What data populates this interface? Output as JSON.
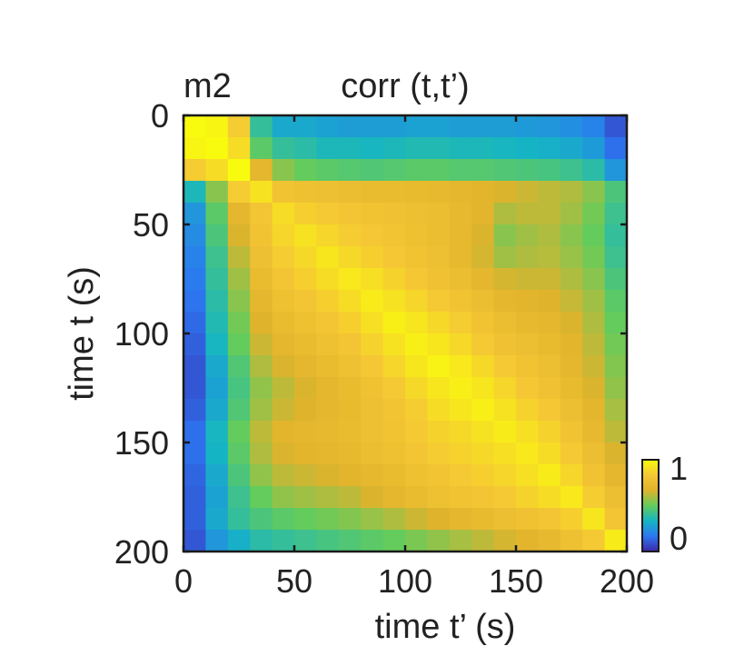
{
  "chart_data": {
    "type": "heatmap",
    "panel_label": "m2",
    "title": "corr (t,t’)",
    "xlabel": "time t’ (s)",
    "ylabel": "time t (s)",
    "xlim": [
      0,
      200
    ],
    "ylim": [
      0,
      200
    ],
    "y_inverted": true,
    "xticks": [
      {
        "value": 0,
        "label": "0"
      },
      {
        "value": 50,
        "label": "50"
      },
      {
        "value": 100,
        "label": "100"
      },
      {
        "value": 150,
        "label": "150"
      },
      {
        "value": 200,
        "label": "200"
      }
    ],
    "yticks": [
      {
        "value": 0,
        "label": "0"
      },
      {
        "value": 50,
        "label": "50"
      },
      {
        "value": 100,
        "label": "100"
      },
      {
        "value": 150,
        "label": "150"
      },
      {
        "value": 200,
        "label": "200"
      }
    ],
    "grid": false,
    "colormap": [
      "#3e26a8",
      "#2c77f2",
      "#15b5c4",
      "#64cc5c",
      "#e0b32c",
      "#f5c735",
      "#f9fb0e"
    ],
    "colorbar": {
      "position": "right",
      "range": [
        0,
        1
      ],
      "ticks": [
        {
          "value": 1,
          "label": "1"
        },
        {
          "value": 0,
          "label": "0"
        }
      ]
    },
    "bin_size_s": 10,
    "values": [
      [
        1.0,
        0.98,
        0.85,
        0.4,
        0.3,
        0.3,
        0.28,
        0.27,
        0.27,
        0.27,
        0.28,
        0.28,
        0.27,
        0.27,
        0.27,
        0.26,
        0.25,
        0.23,
        0.2,
        0.1
      ],
      [
        0.98,
        1.0,
        0.9,
        0.48,
        0.4,
        0.38,
        0.35,
        0.35,
        0.34,
        0.35,
        0.36,
        0.36,
        0.35,
        0.35,
        0.34,
        0.33,
        0.32,
        0.3,
        0.26,
        0.15
      ],
      [
        0.85,
        0.9,
        1.0,
        0.7,
        0.55,
        0.5,
        0.48,
        0.47,
        0.46,
        0.47,
        0.48,
        0.48,
        0.47,
        0.47,
        0.46,
        0.45,
        0.44,
        0.42,
        0.38,
        0.25
      ],
      [
        0.35,
        0.55,
        0.85,
        0.92,
        0.8,
        0.78,
        0.77,
        0.75,
        0.74,
        0.74,
        0.73,
        0.72,
        0.7,
        0.68,
        0.66,
        0.64,
        0.62,
        0.6,
        0.55,
        0.45
      ],
      [
        0.25,
        0.48,
        0.7,
        0.82,
        0.9,
        0.86,
        0.84,
        0.82,
        0.8,
        0.79,
        0.77,
        0.75,
        0.72,
        0.68,
        0.6,
        0.62,
        0.62,
        0.58,
        0.52,
        0.42
      ],
      [
        0.22,
        0.45,
        0.66,
        0.8,
        0.88,
        0.92,
        0.88,
        0.85,
        0.83,
        0.81,
        0.78,
        0.75,
        0.72,
        0.66,
        0.55,
        0.58,
        0.6,
        0.55,
        0.5,
        0.4
      ],
      [
        0.2,
        0.42,
        0.62,
        0.77,
        0.85,
        0.89,
        0.93,
        0.89,
        0.86,
        0.83,
        0.8,
        0.77,
        0.72,
        0.65,
        0.58,
        0.6,
        0.61,
        0.57,
        0.52,
        0.42
      ],
      [
        0.18,
        0.4,
        0.58,
        0.74,
        0.82,
        0.86,
        0.9,
        0.94,
        0.91,
        0.87,
        0.83,
        0.79,
        0.75,
        0.7,
        0.65,
        0.64,
        0.64,
        0.6,
        0.55,
        0.45
      ],
      [
        0.16,
        0.38,
        0.55,
        0.7,
        0.78,
        0.82,
        0.86,
        0.9,
        0.95,
        0.92,
        0.88,
        0.84,
        0.8,
        0.75,
        0.7,
        0.68,
        0.67,
        0.63,
        0.58,
        0.48
      ],
      [
        0.14,
        0.36,
        0.52,
        0.67,
        0.74,
        0.78,
        0.82,
        0.86,
        0.91,
        0.96,
        0.93,
        0.89,
        0.85,
        0.8,
        0.75,
        0.72,
        0.7,
        0.66,
        0.6,
        0.5
      ],
      [
        0.12,
        0.34,
        0.5,
        0.64,
        0.7,
        0.74,
        0.78,
        0.82,
        0.87,
        0.92,
        0.96,
        0.93,
        0.89,
        0.84,
        0.79,
        0.76,
        0.73,
        0.68,
        0.62,
        0.52
      ],
      [
        0.1,
        0.3,
        0.46,
        0.6,
        0.66,
        0.7,
        0.74,
        0.78,
        0.83,
        0.88,
        0.93,
        0.97,
        0.94,
        0.89,
        0.84,
        0.8,
        0.76,
        0.7,
        0.64,
        0.54
      ],
      [
        0.1,
        0.28,
        0.44,
        0.56,
        0.62,
        0.66,
        0.7,
        0.74,
        0.79,
        0.84,
        0.89,
        0.93,
        0.96,
        0.93,
        0.88,
        0.83,
        0.79,
        0.73,
        0.66,
        0.56
      ],
      [
        0.12,
        0.3,
        0.46,
        0.58,
        0.64,
        0.67,
        0.7,
        0.73,
        0.77,
        0.81,
        0.85,
        0.9,
        0.93,
        0.96,
        0.92,
        0.87,
        0.83,
        0.76,
        0.69,
        0.59
      ],
      [
        0.15,
        0.34,
        0.5,
        0.62,
        0.68,
        0.7,
        0.72,
        0.74,
        0.77,
        0.8,
        0.84,
        0.87,
        0.89,
        0.92,
        0.95,
        0.91,
        0.87,
        0.8,
        0.72,
        0.62
      ],
      [
        0.15,
        0.33,
        0.48,
        0.6,
        0.66,
        0.68,
        0.7,
        0.72,
        0.75,
        0.78,
        0.82,
        0.85,
        0.87,
        0.89,
        0.91,
        0.94,
        0.9,
        0.84,
        0.76,
        0.66
      ],
      [
        0.13,
        0.3,
        0.45,
        0.56,
        0.62,
        0.64,
        0.66,
        0.68,
        0.71,
        0.74,
        0.78,
        0.81,
        0.84,
        0.86,
        0.88,
        0.91,
        0.95,
        0.88,
        0.8,
        0.7
      ],
      [
        0.12,
        0.28,
        0.42,
        0.5,
        0.56,
        0.58,
        0.6,
        0.62,
        0.66,
        0.7,
        0.74,
        0.78,
        0.8,
        0.82,
        0.84,
        0.87,
        0.9,
        0.94,
        0.85,
        0.76
      ],
      [
        0.12,
        0.3,
        0.4,
        0.45,
        0.48,
        0.5,
        0.52,
        0.54,
        0.57,
        0.6,
        0.64,
        0.67,
        0.7,
        0.73,
        0.76,
        0.79,
        0.82,
        0.86,
        0.93,
        0.82
      ],
      [
        0.1,
        0.25,
        0.32,
        0.38,
        0.4,
        0.42,
        0.44,
        0.46,
        0.48,
        0.5,
        0.53,
        0.56,
        0.59,
        0.62,
        0.65,
        0.68,
        0.72,
        0.78,
        0.84,
        0.95
      ]
    ]
  }
}
